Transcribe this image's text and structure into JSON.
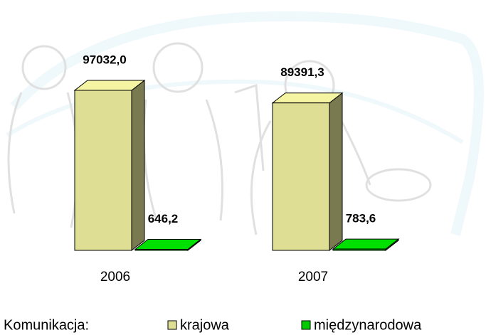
{
  "chart_data": {
    "type": "bar",
    "categories": [
      "2006",
      "2007"
    ],
    "series": [
      {
        "name": "krajowa",
        "color": "#dede94",
        "values": [
          97032.0,
          89391.3
        ],
        "value_labels": [
          "97032,0",
          "89391,3"
        ]
      },
      {
        "name": "międzynarodowa",
        "color": "#00cc00",
        "values": [
          646.2,
          783.6
        ],
        "value_labels": [
          "646,2",
          "783,6"
        ]
      }
    ],
    "legend_title": "Komunikacja:",
    "legend": "bottom",
    "grid": false
  }
}
